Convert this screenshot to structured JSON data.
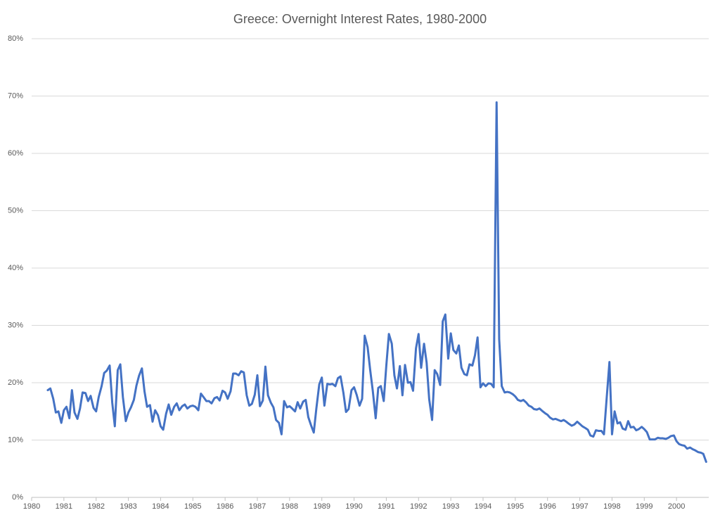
{
  "chart_data": {
    "type": "line",
    "title": "Greece: Overnight Interest Rates, 1980-2000",
    "color": "#4472c4",
    "grid": true,
    "xlim": [
      1980,
      2001
    ],
    "xticks": [
      1980,
      1981,
      1982,
      1983,
      1984,
      1985,
      1986,
      1987,
      1988,
      1989,
      1990,
      1991,
      1992,
      1993,
      1994,
      1995,
      1996,
      1997,
      1998,
      1999,
      2000
    ],
    "ylim": [
      0,
      80
    ],
    "yticks": [
      {
        "value": 0,
        "label": "0%"
      },
      {
        "value": 10,
        "label": "10%"
      },
      {
        "value": 20,
        "label": "20%"
      },
      {
        "value": 30,
        "label": "30%"
      },
      {
        "value": 40,
        "label": "40%"
      },
      {
        "value": 50,
        "label": "50%"
      },
      {
        "value": 60,
        "label": "60%"
      },
      {
        "value": 70,
        "label": "70%"
      },
      {
        "value": 80,
        "label": "80%"
      }
    ],
    "x": [
      1980.5,
      1980.58,
      1980.67,
      1980.75,
      1980.83,
      1980.92,
      1981.0,
      1981.08,
      1981.17,
      1981.25,
      1981.33,
      1981.42,
      1981.5,
      1981.58,
      1981.67,
      1981.75,
      1981.83,
      1981.92,
      1982.0,
      1982.08,
      1982.17,
      1982.25,
      1982.33,
      1982.42,
      1982.5,
      1982.58,
      1982.67,
      1982.75,
      1982.83,
      1982.92,
      1983.0,
      1983.08,
      1983.17,
      1983.25,
      1983.33,
      1983.42,
      1983.5,
      1983.58,
      1983.67,
      1983.75,
      1983.83,
      1983.92,
      1984.0,
      1984.08,
      1984.17,
      1984.25,
      1984.33,
      1984.42,
      1984.5,
      1984.58,
      1984.67,
      1984.75,
      1984.83,
      1984.92,
      1985.0,
      1985.08,
      1985.17,
      1985.25,
      1985.33,
      1985.42,
      1985.5,
      1985.58,
      1985.67,
      1985.75,
      1985.83,
      1985.92,
      1986.0,
      1986.08,
      1986.17,
      1986.25,
      1986.33,
      1986.42,
      1986.5,
      1986.58,
      1986.67,
      1986.75,
      1986.83,
      1986.92,
      1987.0,
      1987.08,
      1987.17,
      1987.25,
      1987.33,
      1987.42,
      1987.5,
      1987.58,
      1987.67,
      1987.75,
      1987.83,
      1987.92,
      1988.0,
      1988.08,
      1988.17,
      1988.25,
      1988.33,
      1988.42,
      1988.5,
      1988.58,
      1988.67,
      1988.75,
      1988.83,
      1988.92,
      1989.0,
      1989.08,
      1989.17,
      1989.25,
      1989.33,
      1989.42,
      1989.5,
      1989.58,
      1989.67,
      1989.75,
      1989.83,
      1989.92,
      1990.0,
      1990.08,
      1990.17,
      1990.25,
      1990.33,
      1990.42,
      1990.5,
      1990.58,
      1990.67,
      1990.75,
      1990.83,
      1990.92,
      1991.0,
      1991.08,
      1991.17,
      1991.25,
      1991.33,
      1991.42,
      1991.5,
      1991.58,
      1991.67,
      1991.75,
      1991.83,
      1991.92,
      1992.0,
      1992.08,
      1992.17,
      1992.25,
      1992.33,
      1992.42,
      1992.5,
      1992.58,
      1992.67,
      1992.75,
      1992.83,
      1992.92,
      1993.0,
      1993.08,
      1993.17,
      1993.25,
      1993.33,
      1993.42,
      1993.5,
      1993.58,
      1993.67,
      1993.75,
      1993.83,
      1993.92,
      1994.0,
      1994.08,
      1994.17,
      1994.25,
      1994.33,
      1994.42,
      1994.5,
      1994.58,
      1994.67,
      1994.75,
      1994.83,
      1994.92,
      1995.0,
      1995.08,
      1995.17,
      1995.25,
      1995.33,
      1995.42,
      1995.5,
      1995.58,
      1995.67,
      1995.75,
      1995.83,
      1995.92,
      1996.0,
      1996.08,
      1996.17,
      1996.25,
      1996.33,
      1996.42,
      1996.5,
      1996.58,
      1996.67,
      1996.75,
      1996.83,
      1996.92,
      1997.0,
      1997.08,
      1997.17,
      1997.25,
      1997.33,
      1997.42,
      1997.5,
      1997.58,
      1997.67,
      1997.75,
      1997.83,
      1997.92,
      1998.0,
      1998.08,
      1998.17,
      1998.25,
      1998.33,
      1998.42,
      1998.5,
      1998.58,
      1998.67,
      1998.75,
      1998.83,
      1998.92,
      1999.0,
      1999.08,
      1999.17,
      1999.25,
      1999.33,
      1999.42,
      1999.5,
      1999.58,
      1999.67,
      1999.75,
      1999.83,
      1999.92,
      2000.0,
      2000.08,
      2000.17,
      2000.25,
      2000.33,
      2000.42,
      2000.5,
      2000.58,
      2000.67,
      2000.75,
      2000.83,
      2000.92
    ],
    "values": [
      18.7,
      19.0,
      17.2,
      14.8,
      15.0,
      13.0,
      15.2,
      15.8,
      13.8,
      18.7,
      14.8,
      13.7,
      15.5,
      18.3,
      18.2,
      16.8,
      17.7,
      15.6,
      15.0,
      17.5,
      19.4,
      21.7,
      22.1,
      23.0,
      16.5,
      12.4,
      22.2,
      23.2,
      17.5,
      13.3,
      14.8,
      15.7,
      17.0,
      19.5,
      21.2,
      22.5,
      18.5,
      15.8,
      16.1,
      13.2,
      15.2,
      14.3,
      12.4,
      11.8,
      14.6,
      16.2,
      14.4,
      15.8,
      16.4,
      15.2,
      15.9,
      16.2,
      15.5,
      15.9,
      16.0,
      15.8,
      15.2,
      18.1,
      17.5,
      16.8,
      16.8,
      16.4,
      17.3,
      17.5,
      16.9,
      18.6,
      18.3,
      17.2,
      18.5,
      21.6,
      21.6,
      21.3,
      22.0,
      21.8,
      17.8,
      16.0,
      16.3,
      17.9,
      21.3,
      15.9,
      16.9,
      22.8,
      17.8,
      16.5,
      15.7,
      13.5,
      13.0,
      11.0,
      16.8,
      15.7,
      15.9,
      15.5,
      15.0,
      16.6,
      15.5,
      16.7,
      17.0,
      14.0,
      12.5,
      11.3,
      15.5,
      19.7,
      20.9,
      16.0,
      19.8,
      19.7,
      19.8,
      19.4,
      20.8,
      21.1,
      18.2,
      14.9,
      15.4,
      18.7,
      19.2,
      17.9,
      16.0,
      17.2,
      28.2,
      26.2,
      22.2,
      18.6,
      13.8,
      19.1,
      19.4,
      16.8,
      23.0,
      28.5,
      26.8,
      21.3,
      19.0,
      22.9,
      17.8,
      23.1,
      20.0,
      20.1,
      18.6,
      26.0,
      28.5,
      22.6,
      26.8,
      23.5,
      17.1,
      13.5,
      22.2,
      21.5,
      19.6,
      30.7,
      31.9,
      24.2,
      28.6,
      25.7,
      25.1,
      26.5,
      22.6,
      21.5,
      21.3,
      23.2,
      23.0,
      24.8,
      27.9,
      19.2,
      19.9,
      19.4,
      19.9,
      19.8,
      19.2,
      68.9,
      27.6,
      19.4,
      18.3,
      18.4,
      18.3,
      18.0,
      17.6,
      17.0,
      16.8,
      17.0,
      16.6,
      16.0,
      15.8,
      15.4,
      15.3,
      15.5,
      15.1,
      14.7,
      14.4,
      13.9,
      13.6,
      13.7,
      13.5,
      13.3,
      13.5,
      13.2,
      12.8,
      12.5,
      12.7,
      13.2,
      12.8,
      12.4,
      12.1,
      11.8,
      10.8,
      10.6,
      11.7,
      11.6,
      11.6,
      11.0,
      17.0,
      23.6,
      11.0,
      15.0,
      12.9,
      13.1,
      12.0,
      11.8,
      13.3,
      12.2,
      12.3,
      11.7,
      11.9,
      12.3,
      11.9,
      11.4,
      10.1,
      10.1,
      10.1,
      10.4,
      10.3,
      10.3,
      10.2,
      10.4,
      10.7,
      10.8,
      9.8,
      9.3,
      9.1,
      9.0,
      8.5,
      8.7,
      8.4,
      8.2,
      7.9,
      7.8,
      7.6,
      6.2
    ]
  }
}
